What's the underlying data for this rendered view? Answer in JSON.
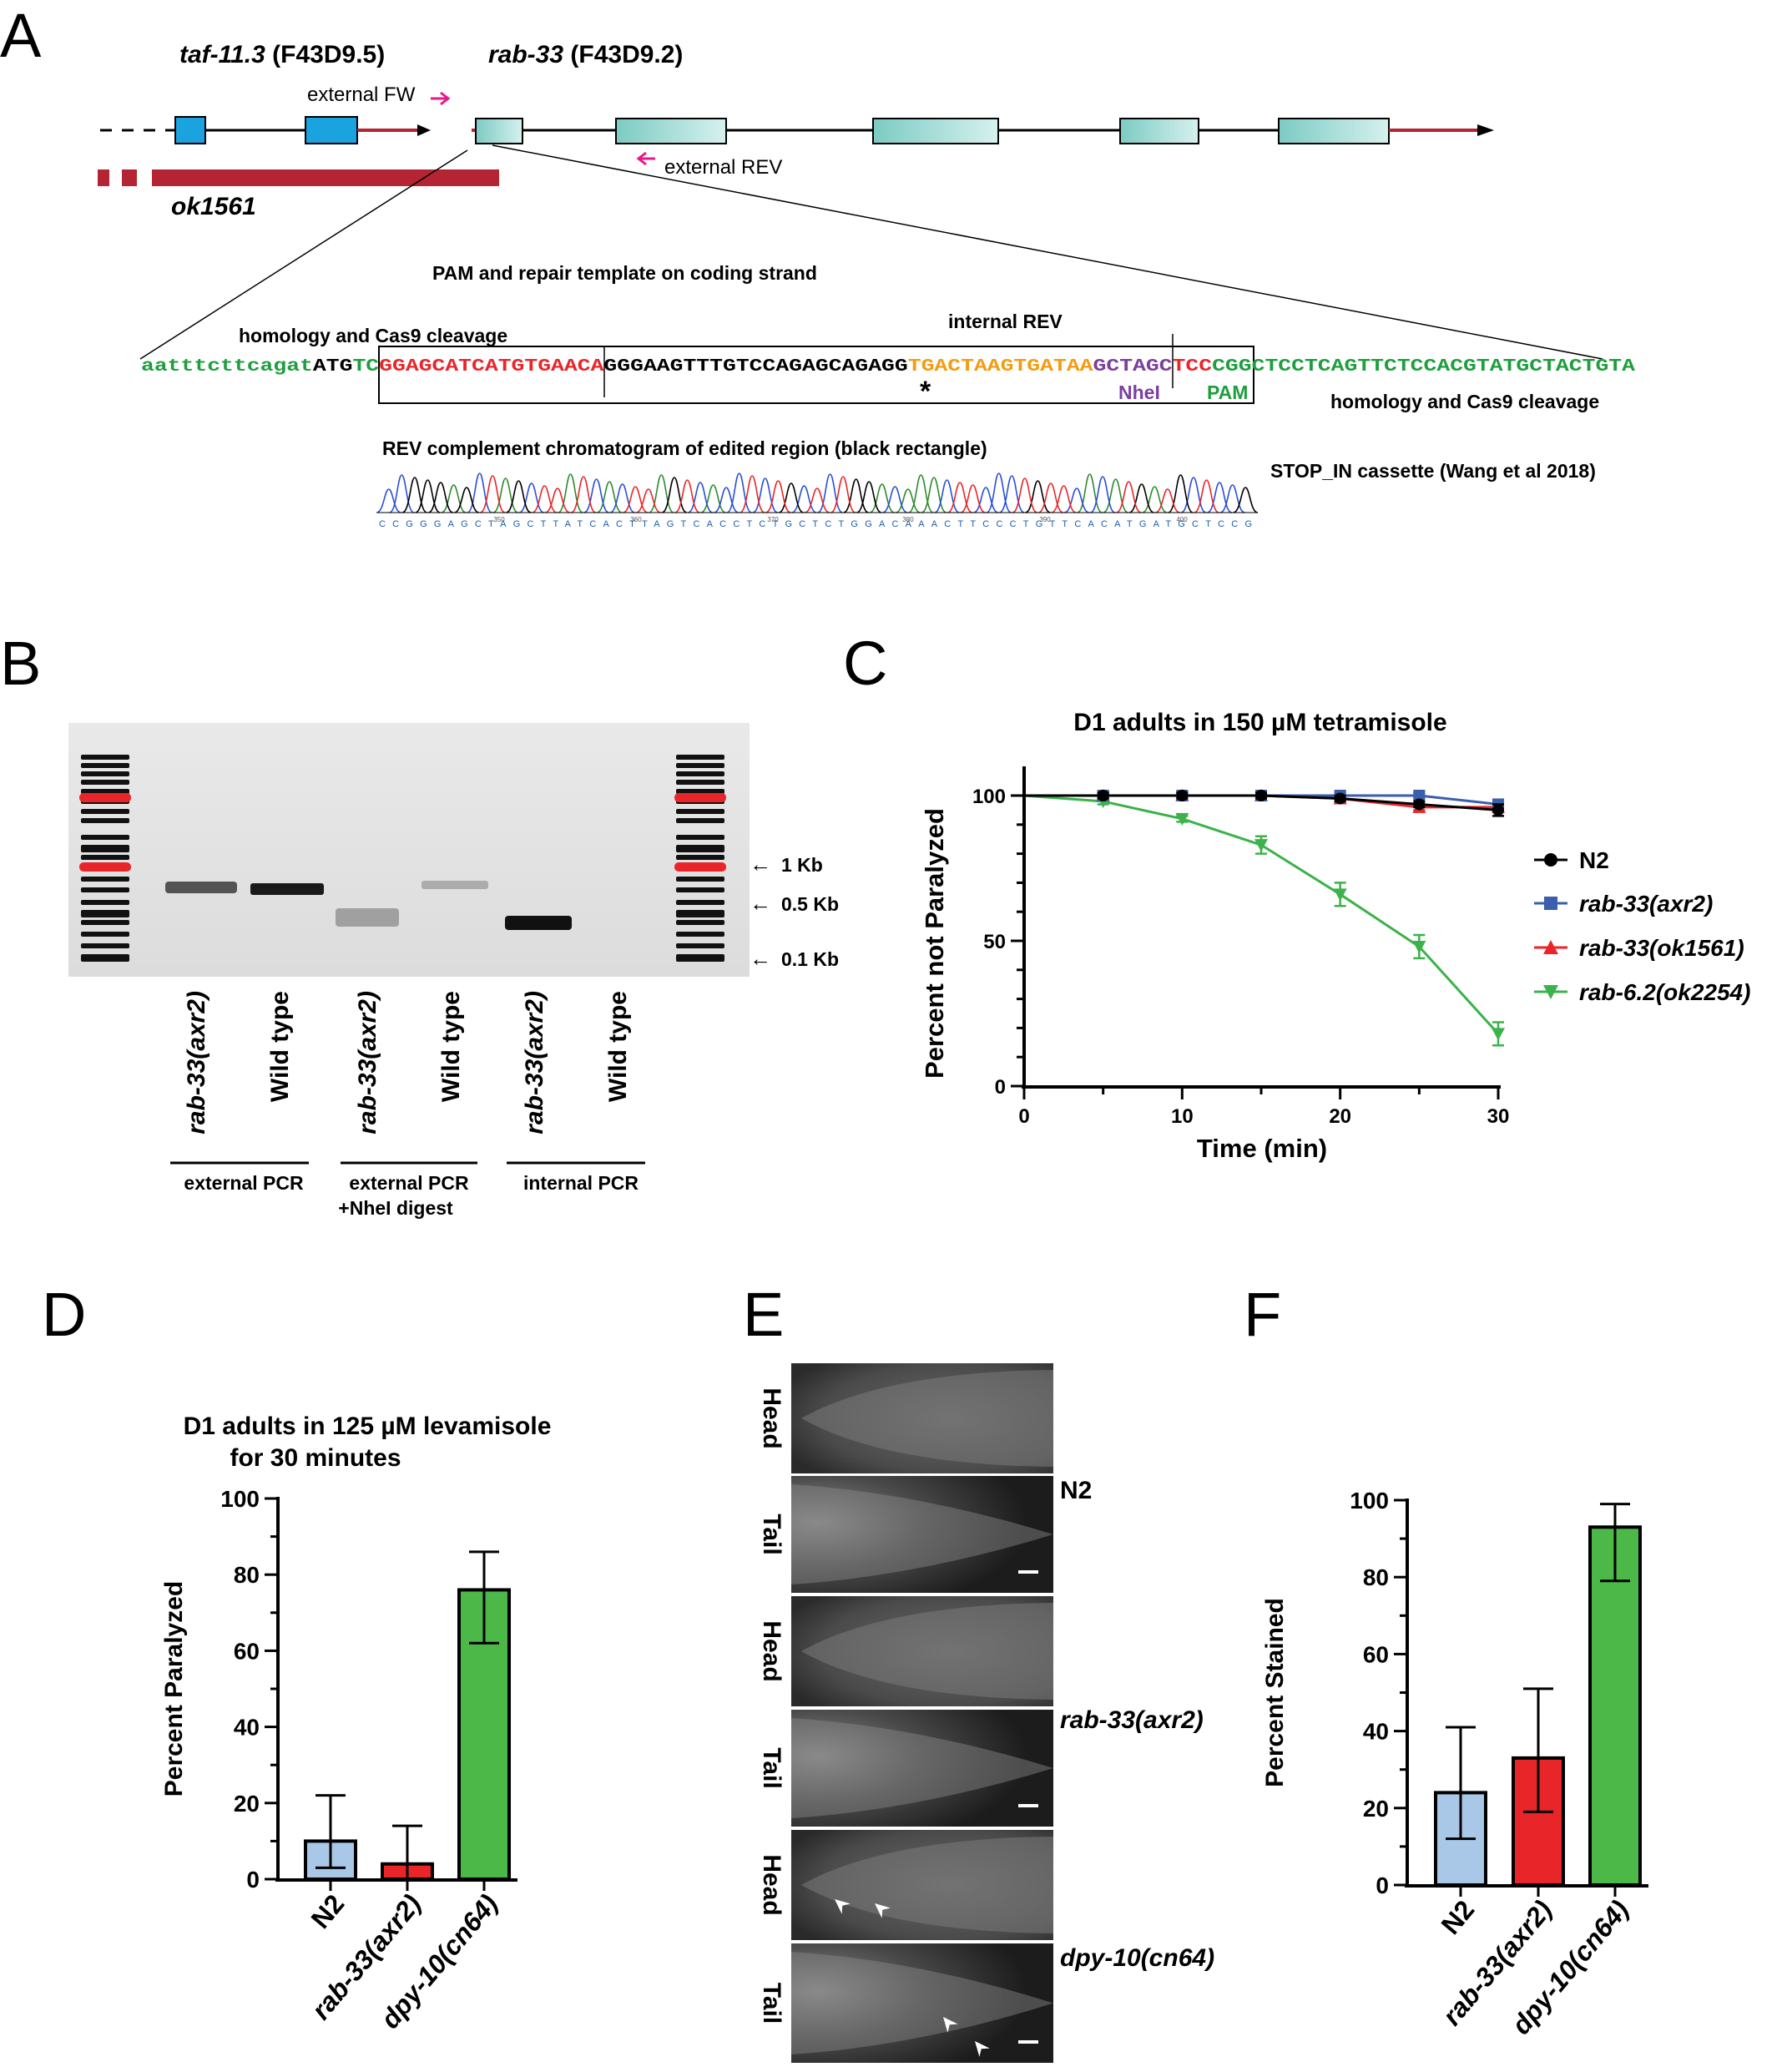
{
  "panel_letters": {
    "a": "A",
    "b": "B",
    "c": "C",
    "d": "D",
    "e": "E",
    "f": "F"
  },
  "panelA": {
    "gene1_name": "taf-11.3",
    "gene1_id": " (F43D9.5)",
    "gene2_name": "rab-33",
    "gene2_id": " (F43D9.2)",
    "primer_fw": "external FW",
    "primer_rev": "external REV",
    "deletion": "ok1561",
    "pam_title": "PAM and repair template on coding strand",
    "homology_left": "homology and Cas9 cleavage",
    "homology_right": "homology and Cas9 cleavage",
    "internal_rev": "internal REV",
    "seq_green_left": "aatttcttcagat",
    "seq_black_atg": "ATG",
    "seq_green_tc": "TC",
    "seq_red": "GGAGCATCATGTGAACA",
    "seq_black_mid": "GGGAAGTTTGTCCAGAGCAGAGG",
    "seq_orange": "TGACTAAGTGATAA",
    "seq_purple": "GCTAGC",
    "seq_red2": "TCC",
    "seq_green_cgg": "CGG",
    "seq_green_right": "CTCCTCAGTTCTCCACGTATGCTACTGTA",
    "asterisk": "*",
    "nhei": "NheI",
    "pam": "PAM",
    "chromatogram_title": "REV complement chromatogram of edited region (black rectangle)",
    "stop_in": "STOP_IN cassette (Wang et al 2018)",
    "chromatogram_bases": "CCGGGAGCTAGCTTATCACTTAGTCACCTCTGCTCTGGACAAACTTCCCTGTTCACATGATGCTCCG",
    "chromatogram_ticks": [
      "350",
      "360",
      "370",
      "380",
      "390",
      "400"
    ],
    "colors": {
      "exon_blue": "#1ba3e0",
      "exon_teal": "#9fd9d3",
      "utr_red": "#b52432",
      "primer_magenta": "#e6198a",
      "seq_green": "#1e9e3e",
      "seq_red": "#e8262a",
      "seq_orange": "#f39c12",
      "seq_purple": "#7b3f9e"
    }
  },
  "panelB": {
    "markers": [
      {
        "arrow": "←",
        "label": "1 Kb"
      },
      {
        "arrow": "←",
        "label": "0.5 Kb"
      },
      {
        "arrow": "←",
        "label": "0.1 Kb"
      }
    ],
    "lanes": [
      "rab-33(axr2)",
      "Wild type",
      "rab-33(axr2)",
      "Wild type",
      "rab-33(axr2)",
      "Wild type"
    ],
    "groups": [
      "external PCR",
      "external PCR\n+NheI digest",
      "internal PCR"
    ],
    "group1": "external PCR",
    "group2_line1": "external PCR",
    "group2_line2": "+NheI digest",
    "group3": "internal PCR"
  },
  "chart_data": [
    {
      "panel": "C",
      "type": "line",
      "title": "D1 adults in 150 µM tetramisole",
      "xlabel": "Time (min)",
      "ylabel": "Percent not Paralyzed",
      "xlim": [
        0,
        30
      ],
      "ylim": [
        0,
        100
      ],
      "xticks": [
        "0",
        "10",
        "20",
        "30"
      ],
      "yticks": [
        "0",
        "50",
        "100"
      ],
      "x": [
        0,
        5,
        10,
        15,
        20,
        25,
        30
      ],
      "legend_position": "right",
      "series": [
        {
          "name": "N2",
          "marker": "circle",
          "color": "#000000",
          "values": [
            100,
            100,
            100,
            100,
            99,
            97,
            95
          ],
          "err": [
            0,
            1,
            1,
            1,
            1,
            1,
            2
          ]
        },
        {
          "name": "rab-33(axr2)",
          "marker": "square",
          "color": "#3a5fad",
          "values": [
            100,
            100,
            100,
            100,
            100,
            100,
            97
          ],
          "err": [
            0,
            1,
            1,
            1,
            1,
            1,
            1
          ]
        },
        {
          "name": "rab-33(ok1561)",
          "marker": "triangle-up",
          "color": "#e8262a",
          "values": [
            100,
            100,
            100,
            100,
            99,
            96,
            96
          ],
          "err": [
            0,
            1,
            1,
            1,
            1,
            1,
            1
          ]
        },
        {
          "name": "rab-6.2(ok2254)",
          "marker": "triangle-down",
          "color": "#3bb24a",
          "values": [
            100,
            98,
            92,
            83,
            66,
            48,
            18
          ],
          "err": [
            0,
            1,
            1,
            3,
            4,
            4,
            4
          ]
        }
      ]
    },
    {
      "panel": "D",
      "type": "bar",
      "title": "D1 adults in 125 µM levamisole\nfor 30 minutes",
      "title_line1": "D1 adults in 125 µM levamisole",
      "title_line2": "for 30 minutes",
      "xlabel": "",
      "ylabel": "Percent Paralyzed",
      "ylim": [
        0,
        100
      ],
      "yticks": [
        "0",
        "20",
        "40",
        "60",
        "80",
        "100"
      ],
      "categories": [
        "N2",
        "rab-33(axr2)",
        "dpy-10(cn64)"
      ],
      "values": [
        10,
        4,
        76
      ],
      "err_low": [
        3,
        0,
        62
      ],
      "err_high": [
        22,
        14,
        86
      ],
      "colors": [
        "#a9c8e8",
        "#e8262a",
        "#4cb848"
      ]
    },
    {
      "panel": "F",
      "type": "bar",
      "title": "",
      "xlabel": "",
      "ylabel": "Percent Stained",
      "ylim": [
        0,
        100
      ],
      "yticks": [
        "0",
        "20",
        "40",
        "60",
        "80",
        "100"
      ],
      "categories": [
        "N2",
        "rab-33(axr2)",
        "dpy-10(cn64)"
      ],
      "values": [
        24,
        33,
        93
      ],
      "err_low": [
        12,
        19,
        79
      ],
      "err_high": [
        41,
        51,
        99
      ],
      "colors": [
        "#a9c8e8",
        "#e8262a",
        "#4cb848"
      ]
    }
  ],
  "panelE": {
    "rows": [
      {
        "label": "Head"
      },
      {
        "label": "Tail"
      },
      {
        "label": "Head"
      },
      {
        "label": "Tail"
      },
      {
        "label": "Head"
      },
      {
        "label": "Tail"
      }
    ],
    "strains": [
      "N2",
      "rab-33(axr2)",
      "dpy-10(cn64)"
    ],
    "arrowhead": "➤"
  }
}
